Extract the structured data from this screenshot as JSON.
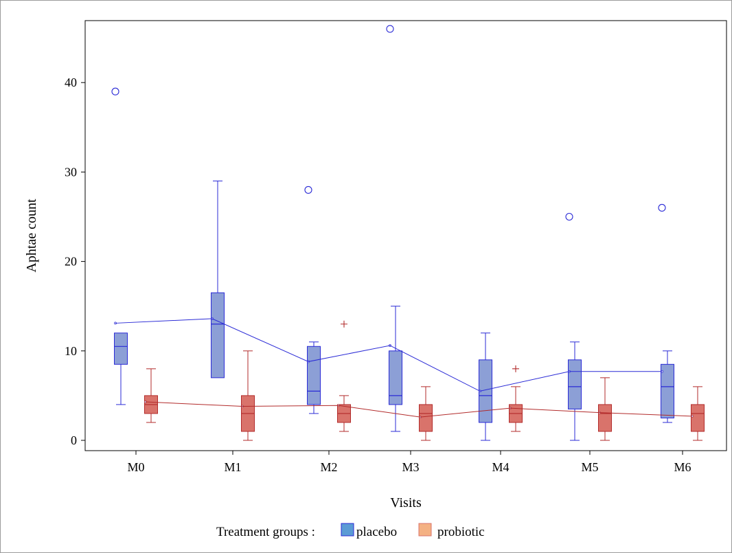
{
  "chart_data": {
    "type": "box",
    "xlabel": "Visits",
    "ylabel": "Aphtae count",
    "ylim": [
      -1,
      47
    ],
    "y_ticks": [
      0,
      10,
      20,
      30,
      40
    ],
    "categories": [
      "M0",
      "M1",
      "M2",
      "M3",
      "M4",
      "M5",
      "M6"
    ],
    "legend": {
      "title": "Treatment groups :",
      "placement": "bottom"
    },
    "series": [
      {
        "name": "placebo",
        "fill": "#8c9fd6",
        "legend_fill": "#5b9bd5",
        "stroke": "#2a2ad6",
        "boxes": [
          {
            "min": 4,
            "q1": 8.5,
            "median": 10.5,
            "q3": 12,
            "max": 12,
            "mean": 13.1,
            "outliers": [
              39
            ],
            "outlier_style": "circle"
          },
          {
            "min": 7,
            "q1": 7,
            "median": 13,
            "q3": 16.5,
            "max": 29,
            "mean": 13.6,
            "outliers": [],
            "outlier_style": "circle"
          },
          {
            "min": 3,
            "q1": 4,
            "median": 5.5,
            "q3": 10.5,
            "max": 11,
            "mean": 8.8,
            "outliers": [
              28
            ],
            "outlier_style": "circle"
          },
          {
            "min": 1,
            "q1": 4,
            "median": 5,
            "q3": 10,
            "max": 15,
            "mean": 10.6,
            "outliers": [
              46
            ],
            "outlier_style": "circle"
          },
          {
            "min": 0,
            "q1": 2,
            "median": 5,
            "q3": 9,
            "max": 12,
            "mean": 5.5,
            "outliers": [],
            "outlier_style": "circle"
          },
          {
            "min": 0,
            "q1": 3.5,
            "median": 6,
            "q3": 9,
            "max": 11,
            "mean": 7.7,
            "outliers": [
              25
            ],
            "outlier_style": "circle"
          },
          {
            "min": 2,
            "q1": 2.5,
            "median": 6,
            "q3": 8.5,
            "max": 10,
            "mean": 7.7,
            "outliers": [
              26
            ],
            "outlier_style": "circle"
          }
        ]
      },
      {
        "name": "probiotic",
        "fill": "#d9736b",
        "legend_fill": "#f4b183",
        "stroke": "#b22a2a",
        "boxes": [
          {
            "min": 2,
            "q1": 3,
            "median": 4,
            "q3": 5,
            "max": 8,
            "mean": 4.3,
            "outliers": [],
            "outlier_style": "plus"
          },
          {
            "min": 0,
            "q1": 1,
            "median": 3,
            "q3": 5,
            "max": 10,
            "mean": 3.8,
            "outliers": [],
            "outlier_style": "plus"
          },
          {
            "min": 1,
            "q1": 2,
            "median": 3,
            "q3": 4,
            "max": 5,
            "mean": 3.9,
            "outliers": [
              13
            ],
            "outlier_style": "plus"
          },
          {
            "min": 0,
            "q1": 1,
            "median": 3,
            "q3": 4,
            "max": 6,
            "mean": 2.6,
            "outliers": [],
            "outlier_style": "plus"
          },
          {
            "min": 1,
            "q1": 2,
            "median": 3,
            "q3": 4,
            "max": 6,
            "mean": 3.6,
            "outliers": [
              8
            ],
            "outlier_style": "plus"
          },
          {
            "min": 0,
            "q1": 1,
            "median": 3,
            "q3": 4,
            "max": 7,
            "mean": 3.1,
            "outliers": [],
            "outlier_style": "plus"
          },
          {
            "min": 0,
            "q1": 1,
            "median": 3,
            "q3": 4,
            "max": 6,
            "mean": 2.7,
            "outliers": [],
            "outlier_style": "plus"
          }
        ]
      }
    ]
  }
}
